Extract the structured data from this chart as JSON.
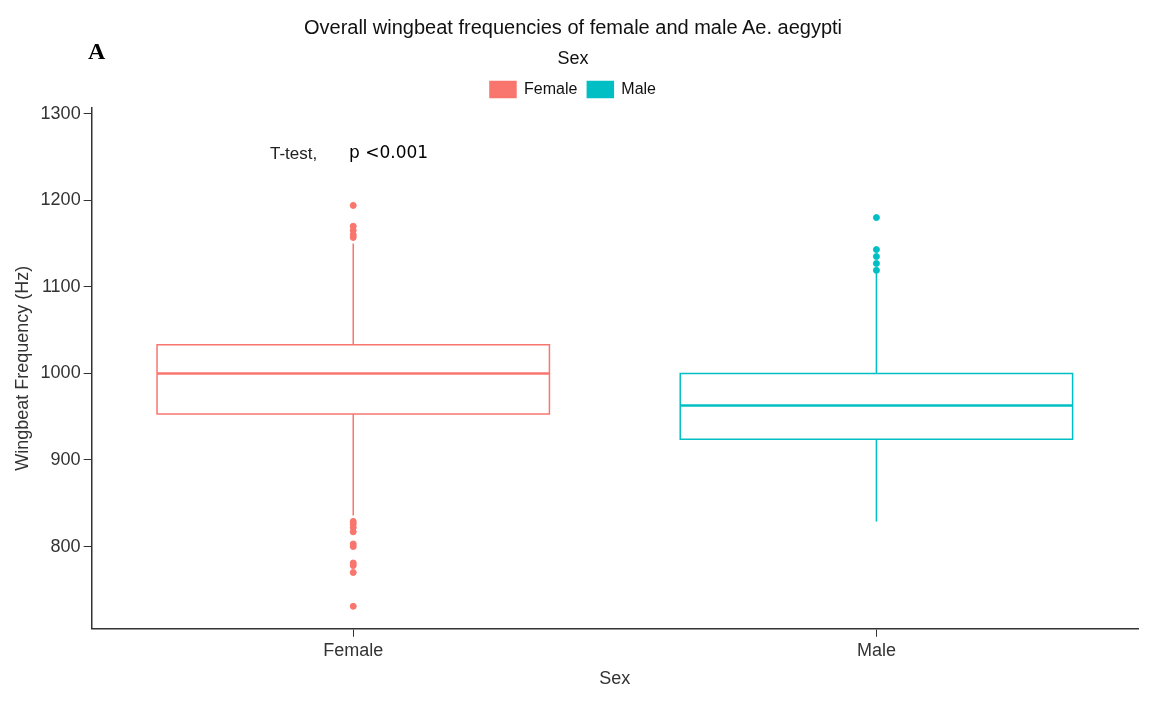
{
  "chart_data": {
    "type": "box",
    "title": "Overall wingbeat frequencies of female and male Ae. aegypti",
    "xlabel": "Sex",
    "ylabel": "Wingbeat Frequency (Hz)",
    "legend_title": "Sex",
    "legend": "top",
    "annotations": [
      "A",
      "T-test,",
      "p <0.001"
    ],
    "categories": [
      "Female",
      "Male"
    ],
    "series": [
      {
        "name": "Female",
        "color": "#f8766d",
        "boxes": [
          {
            "low": 836,
            "q1": 953,
            "median": 1000,
            "q3": 1033,
            "high": 1150,
            "outliers": [
              731,
              770,
              778,
              781,
              800,
              803,
              817,
              822,
              826,
              829,
              1157,
              1160,
              1165,
              1170,
              1194
            ]
          },
          null
        ]
      },
      {
        "name": "Male",
        "color": "#00bfc4",
        "boxes": [
          null,
          {
            "low": 829,
            "q1": 924,
            "median": 963,
            "q3": 1000,
            "high": 1116,
            "outliers": [
              1119,
              1127,
              1135,
              1143,
              1180
            ]
          }
        ]
      }
    ],
    "ylim": [
      705,
      1307
    ],
    "yticks": [
      800,
      900,
      1000,
      1100,
      1200,
      1300
    ],
    "grid": false,
    "marker": "circle"
  }
}
